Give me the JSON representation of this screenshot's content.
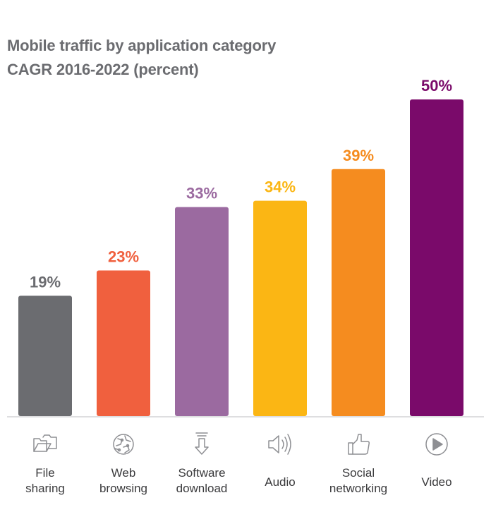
{
  "chart_data": {
    "type": "bar",
    "title": "Mobile traffic by application category",
    "subtitle": "CAGR 2016-2022 (percent)",
    "categories": [
      {
        "line1": "File",
        "line2": "sharing"
      },
      {
        "line1": "Web",
        "line2": "browsing"
      },
      {
        "line1": "Software",
        "line2": "download"
      },
      {
        "line1": "Audio",
        "line2": ""
      },
      {
        "line1": "Social",
        "line2": "networking"
      },
      {
        "line1": "Video",
        "line2": ""
      }
    ],
    "values": [
      19,
      23,
      33,
      34,
      39,
      50
    ],
    "value_labels": [
      "19%",
      "23%",
      "33%",
      "34%",
      "39%",
      "50%"
    ],
    "colors": [
      "#6b6c70",
      "#f0603e",
      "#9b6aa0",
      "#fbb614",
      "#f58c1f",
      "#7a0a6a"
    ],
    "label_colors": [
      "#6b6c70",
      "#f0603e",
      "#9b6aa0",
      "#fbb614",
      "#f58c1f",
      "#7a0a6a"
    ],
    "icons": [
      "folders-icon",
      "globe-icon",
      "download-icon",
      "speaker-icon",
      "thumbs-up-icon",
      "play-icon"
    ],
    "ylim": [
      0,
      50
    ],
    "grid": false,
    "legend": "none"
  }
}
